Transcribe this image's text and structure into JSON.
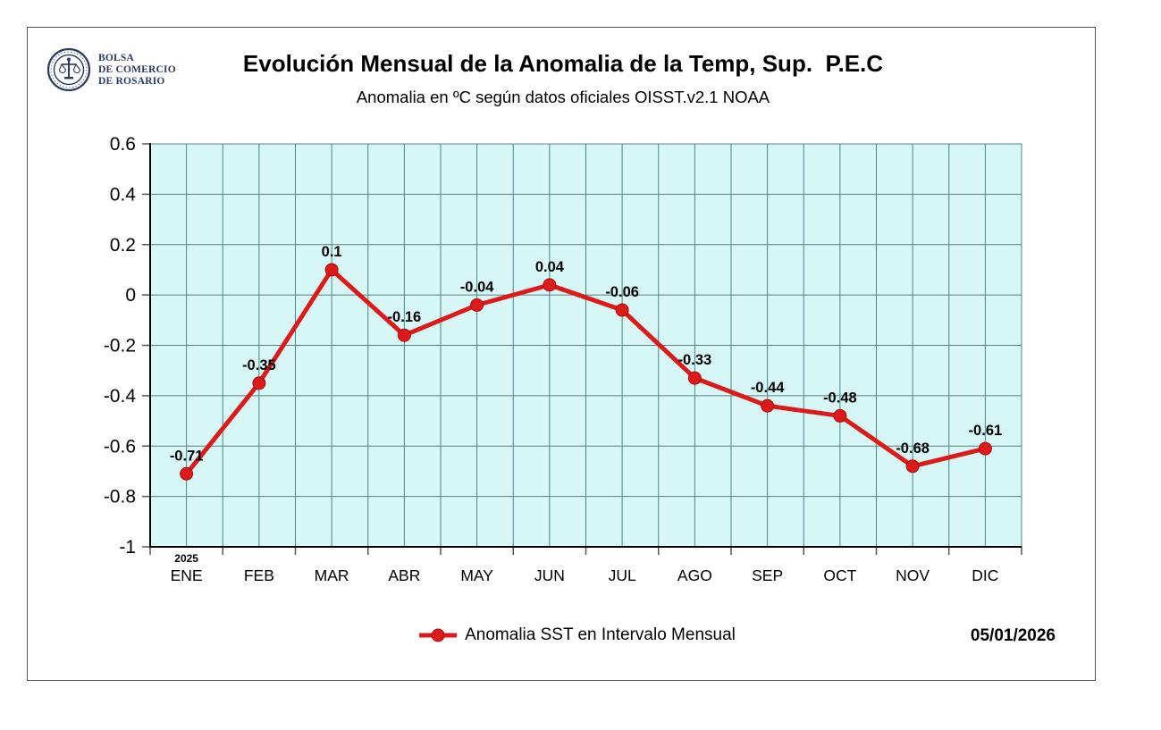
{
  "brand": {
    "org_lines": [
      "BOLSA",
      "DE COMERCIO",
      "DE ROSARIO"
    ],
    "seal_color": "#2b3a66"
  },
  "chart_data": {
    "type": "line",
    "title": "Evolución Mensual de la Anomalia de la Temp, Sup.  P.E.C",
    "subtitle": "Anomalia en ºC según datos oficiales OISST.v2.1 NOAA",
    "categories": [
      "ENE",
      "FEB",
      "MAR",
      "ABR",
      "MAY",
      "JUN",
      "JUL",
      "AGO",
      "SEP",
      "OCT",
      "NOV",
      "DIC"
    ],
    "year_label": "2025",
    "series": [
      {
        "name": "Anomalia SST en Intervalo Mensual",
        "values": [
          -0.71,
          -0.35,
          0.1,
          -0.16,
          -0.04,
          0.04,
          -0.06,
          -0.33,
          -0.44,
          -0.48,
          -0.68,
          -0.61
        ]
      }
    ],
    "data_labels": [
      "-0.71",
      "-0.35",
      "0.1",
      "-0.16",
      "-0.04",
      "0.04",
      "-0.06",
      "-0.33",
      "-0.44",
      "-0.48",
      "-0.68",
      "-0.61"
    ],
    "ylim": [
      -1,
      0.6
    ],
    "yticks": [
      0.6,
      0.4,
      0.2,
      0,
      -0.2,
      -0.4,
      -0.6,
      -0.8,
      -1
    ],
    "grid": true,
    "legend_position": "bottom",
    "colors": {
      "line": "#dc1a1a",
      "marker_edge": "#a80f0f",
      "plot_bg": "#d7f6f6",
      "grid_vertical": "#478787",
      "grid_horizontal": "#5c8080",
      "axis": "#000000",
      "tick": "#555555"
    }
  },
  "footer": {
    "legend_label": "Anomalia SST en Intervalo Mensual",
    "date_label": "05/01/2026"
  }
}
